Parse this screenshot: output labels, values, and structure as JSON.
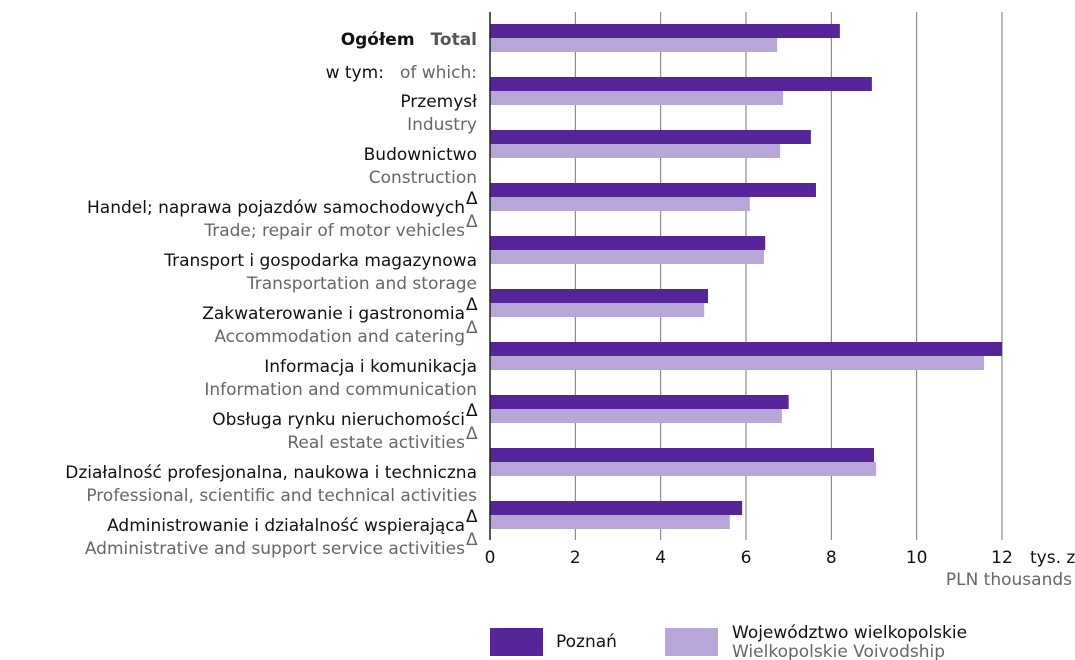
{
  "chart_data": {
    "type": "hbar",
    "categories": [
      "Ogółem",
      "Przemysł",
      "Budownictwo",
      "Handel; naprawa pojazdów samochodowych",
      "Transport i gospodarka magazynowa",
      "Zakwaterowanie i gastronomia",
      "Informacja i komunikacja",
      "Obsługa rynku nieruchomości",
      "Działalność profesjonalna, naukowa i techniczna",
      "Administrowanie i działalność wspierająca"
    ],
    "categories_en": [
      "Total",
      "Industry",
      "Construction",
      "Trade; repair of motor vehicles",
      "Transportation and storage",
      "Accommodation and catering",
      "Information and communication",
      "Real estate activities",
      "Professional, scientific and technical activities",
      "Administrative and support service activities"
    ],
    "note_marks": [
      null,
      null,
      null,
      "Δ",
      null,
      "Δ",
      null,
      "Δ",
      null,
      "Δ"
    ],
    "subheading": "w tym:",
    "subheading_en": "of which:",
    "series": [
      {
        "name": "Poznań",
        "color": "#56259a",
        "values": [
          8.2,
          8.95,
          7.52,
          7.64,
          6.45,
          5.11,
          12.0,
          7.0,
          9.0,
          5.91
        ]
      },
      {
        "name": "Województwo wielkopolskie",
        "name_en": "Wielkopolskie Voivodship",
        "color": "#b8a6d8",
        "values": [
          6.73,
          6.87,
          6.8,
          6.09,
          6.42,
          5.02,
          11.58,
          6.84,
          9.05,
          5.62
        ]
      }
    ],
    "xlim": [
      0,
      12
    ],
    "xticks": [
      0,
      2,
      4,
      6,
      8,
      10,
      12
    ],
    "x_unit": "tys. zł",
    "x_unit_en": "PLN thousands",
    "grid": true
  }
}
